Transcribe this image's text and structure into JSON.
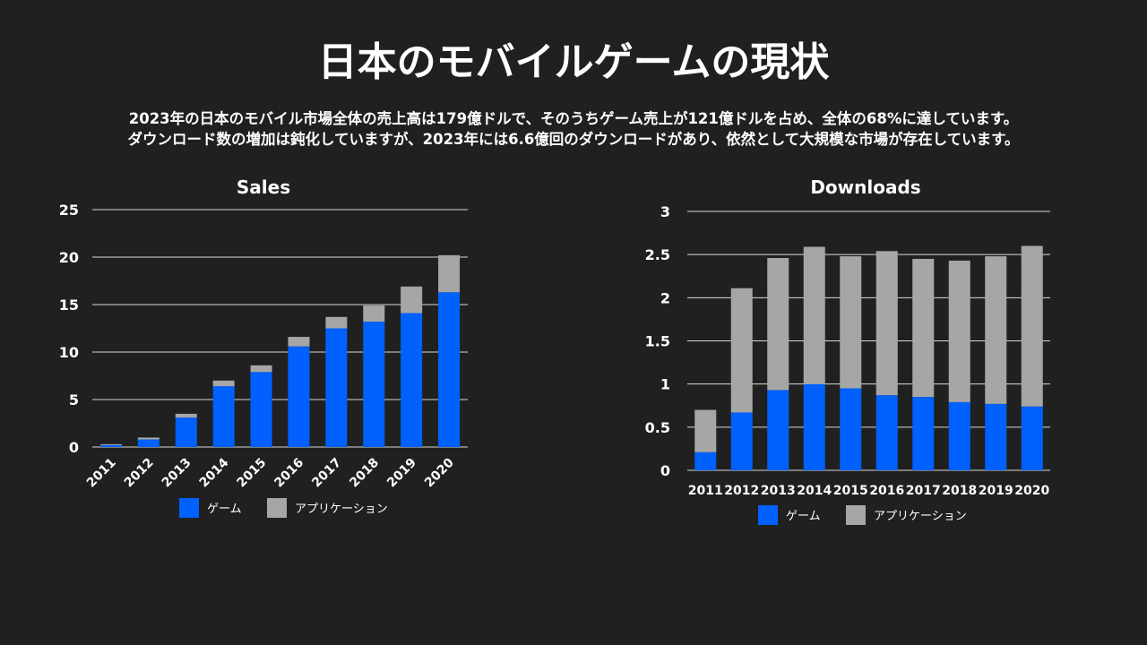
{
  "title": "日本のモバイルゲームの現状",
  "description_lines": [
    "2023年の日本のモバイル市場全体の売上高は179億ドルで、そのうちゲーム売上が121億ドルを占め、全体の68%に達しています。",
    "ダウンロード数の増加は鈍化していますが、2023年には6.6億回のダウンロードがあり、依然として大規模な市場が存在しています。"
  ],
  "colors": {
    "game": "#0061FF",
    "app": "#A6A6A6",
    "background": "#202020",
    "grid": "#D9D9D9"
  },
  "chart_data": [
    {
      "type": "bar",
      "stacked": true,
      "title": "Sales",
      "categories": [
        "2011",
        "2012",
        "2013",
        "2014",
        "2015",
        "2016",
        "2017",
        "2018",
        "2019",
        "2020"
      ],
      "series": [
        {
          "name": "ゲーム",
          "values": [
            0.2,
            0.8,
            3.1,
            6.4,
            7.9,
            10.6,
            12.5,
            13.2,
            14.1,
            16.3
          ]
        },
        {
          "name": "アプリケーション",
          "values": [
            0.1,
            0.2,
            0.4,
            0.6,
            0.7,
            1.0,
            1.2,
            1.7,
            2.8,
            3.9
          ]
        }
      ],
      "ylim": [
        0,
        25
      ],
      "yticks": [
        0,
        5,
        10,
        15,
        20,
        25
      ],
      "grid": true,
      "legend": "bottom",
      "xtick_rotation": "diagonal"
    },
    {
      "type": "bar",
      "stacked": true,
      "title": "Downloads",
      "categories": [
        "2011",
        "2012",
        "2013",
        "2014",
        "2015",
        "2016",
        "2017",
        "2018",
        "2019",
        "2020"
      ],
      "series": [
        {
          "name": "ゲーム",
          "values": [
            0.21,
            0.67,
            0.93,
            1.0,
            0.95,
            0.87,
            0.85,
            0.79,
            0.77,
            0.74
          ]
        },
        {
          "name": "アプリケーション",
          "values": [
            0.49,
            1.44,
            1.53,
            1.59,
            1.53,
            1.67,
            1.6,
            1.64,
            1.71,
            1.86
          ]
        }
      ],
      "ylim": [
        0,
        3
      ],
      "yticks": [
        "0",
        "0.5",
        "1",
        "1.5",
        "2",
        "2.5",
        "3"
      ],
      "grid": true,
      "legend": "bottom",
      "xtick_rotation": "none"
    }
  ]
}
